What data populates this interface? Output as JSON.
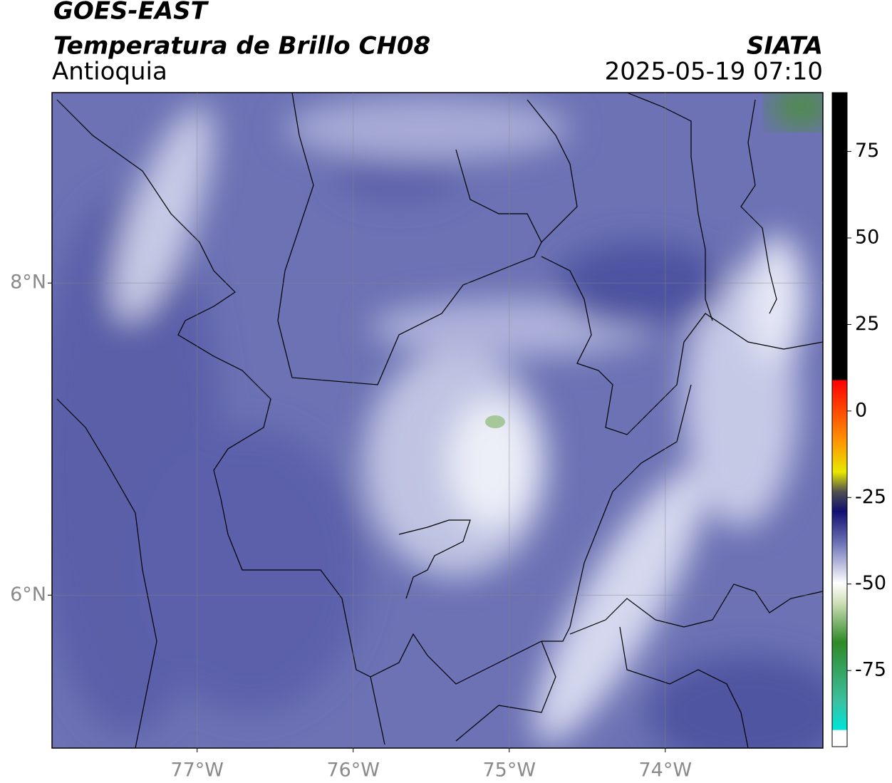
{
  "header": {
    "title": "GOES-EAST",
    "subtitle": "Temperatura de Brillo CH08",
    "region": "Antioquia",
    "source": "SIATA",
    "timestamp": "2025-05-19 07:10"
  },
  "map": {
    "xlim": [
      -77.93,
      -72.99
    ],
    "ylim": [
      5.02,
      9.22
    ],
    "xticks": [
      {
        "value": -77,
        "label": "77°W"
      },
      {
        "value": -76,
        "label": "76°W"
      },
      {
        "value": -75,
        "label": "75°W"
      },
      {
        "value": -74,
        "label": "74°W"
      }
    ],
    "yticks": [
      {
        "value": 8,
        "label": "8°N"
      },
      {
        "value": 6,
        "label": "6°N"
      }
    ]
  },
  "colorbar": {
    "lim": [
      -97,
      92
    ],
    "ticks": [
      75,
      50,
      25,
      0,
      -25,
      -50,
      -75
    ]
  }
}
